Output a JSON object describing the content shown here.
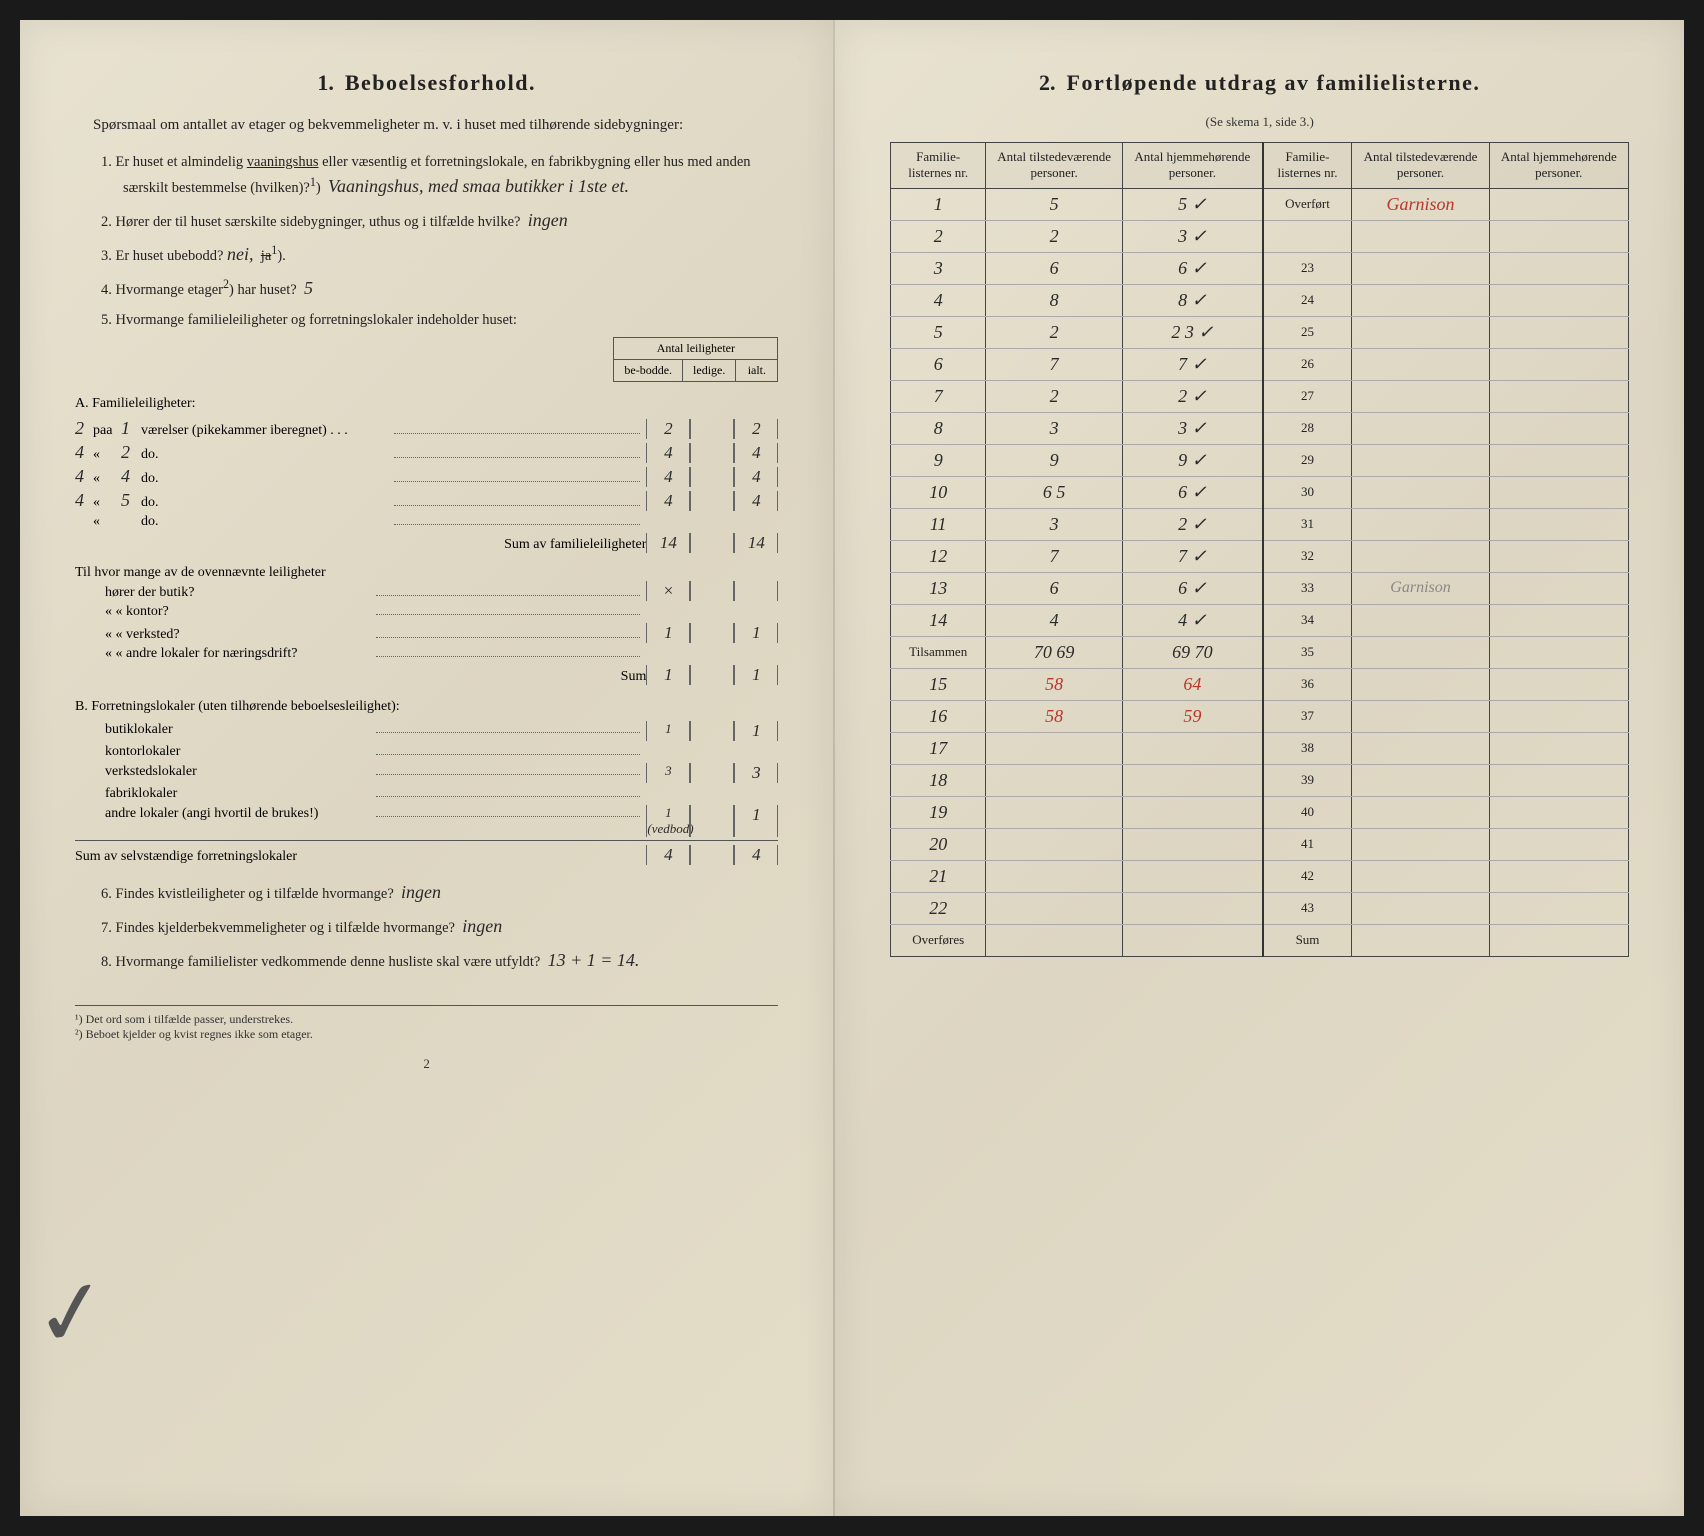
{
  "document": {
    "background_color": "#e4ddc8",
    "ink_color": "#222222",
    "red_ink": "#b8372a",
    "pencil_color": "#888888"
  },
  "left": {
    "section_no": "1.",
    "section_title": "Beboelsesforhold.",
    "intro": "Spørsmaal om antallet av etager og bekvemmeligheter m. v. i huset med tilhørende sidebygninger:",
    "q1": {
      "num": "1.",
      "text_a": "Er huset et almindelig ",
      "underlined": "vaaningshus",
      "text_b": " eller væsentlig et forretningslokale, en fabrikbygning eller hus med anden særskilt bestemmelse (hvilken)?",
      "sup": "1",
      "answer": "Vaaningshus, med smaa butikker i 1ste et."
    },
    "q2": {
      "num": "2.",
      "text": "Hører der til huset særskilte sidebygninger, uthus og i tilfælde hvilke?",
      "answer": "ingen"
    },
    "q3": {
      "num": "3.",
      "text_a": "Er huset ubebodd? ",
      "answer": "nei,",
      "struck": "ja",
      "sup": "1",
      "text_b": ")."
    },
    "q4": {
      "num": "4.",
      "text_a": "Hvormange etager",
      "sup": "2",
      "text_b": ") har huset?",
      "answer": "5"
    },
    "q5": {
      "num": "5.",
      "text": "Hvormange familieleiligheter og forretningslokaler indeholder huset:"
    },
    "mini_header": {
      "top": "Antal leiligheter",
      "c1": "be-bodde.",
      "c2": "ledige.",
      "c3": "ialt."
    },
    "sectionA_title": "A. Familieleiligheter:",
    "a_rows": [
      {
        "margin": "2",
        "label_a": "paa",
        "n": "1",
        "label_b": "værelser (pikekammer iberegnet) . . .",
        "c1": "2",
        "c2": "",
        "c3": "2"
      },
      {
        "margin": "4",
        "label_a": "«",
        "n": "2",
        "label_b": "do.",
        "c1": "4",
        "c2": "",
        "c3": "4"
      },
      {
        "margin": "4",
        "label_a": "«",
        "n": "4",
        "label_b": "do.",
        "c1": "4",
        "c2": "",
        "c3": "4"
      },
      {
        "margin": "4",
        "label_a": "«",
        "n": "5",
        "label_b": "do.",
        "c1": "4",
        "c2": "",
        "c3": "4"
      },
      {
        "margin": "",
        "label_a": "«",
        "n": "",
        "label_b": "do.",
        "c1": "",
        "c2": "",
        "c3": ""
      }
    ],
    "a_sum_label": "Sum av familieleiligheter",
    "a_sum": {
      "c1": "14",
      "c2": "",
      "c3": "14"
    },
    "sub_q_intro": "Til hvor mange av de ovennævnte leiligheter",
    "sub_rows": [
      {
        "label": "hører der butik?",
        "c1": "×",
        "c2": "",
        "c3": ""
      },
      {
        "label": "«    «  kontor?",
        "c1": "",
        "c2": "",
        "c3": ""
      },
      {
        "label": "«    «  verksted?",
        "c1": "1",
        "c2": "",
        "c3": "1"
      },
      {
        "label": "«    «  andre lokaler for næringsdrift?",
        "c1": "",
        "c2": "",
        "c3": ""
      }
    ],
    "sub_sum_label": "Sum",
    "sub_sum": {
      "c1": "1",
      "c2": "",
      "c3": "1"
    },
    "sectionB_title": "B. Forretningslokaler (uten tilhørende beboelsesleilighet):",
    "b_rows": [
      {
        "label": "butiklokaler",
        "c1": "1",
        "c2": "",
        "c3": "1"
      },
      {
        "label": "kontorlokaler",
        "c1": "",
        "c2": "",
        "c3": ""
      },
      {
        "label": "verkstedslokaler",
        "c1": "3",
        "c2": "",
        "c3": "3"
      },
      {
        "label": "fabriklokaler",
        "c1": "",
        "c2": "",
        "c3": ""
      },
      {
        "label": "andre lokaler (angi hvortil de brukes!)",
        "c1": "1 (vedbod)",
        "c2": "",
        "c3": "1"
      }
    ],
    "b_sum_label": "Sum av selvstændige forretningslokaler",
    "b_sum": {
      "c1": "4",
      "c2": "",
      "c3": "4"
    },
    "q6": {
      "num": "6.",
      "text": "Findes kvistleiligheter og i tilfælde hvormange?",
      "answer": "ingen"
    },
    "q7": {
      "num": "7.",
      "text": "Findes kjelderbekvemmeligheter og i tilfælde hvormange?",
      "answer": "ingen"
    },
    "q8": {
      "num": "8.",
      "text": "Hvormange familielister vedkommende denne husliste skal være utfyldt?",
      "answer": "13 + 1 = 14."
    },
    "footnote1": "¹) Det ord som i tilfælde passer, understrekes.",
    "footnote2": "²) Beboet kjelder og kvist regnes ikke som etager.",
    "page_num": "2"
  },
  "right": {
    "section_no": "2.",
    "section_title": "Fortløpende utdrag av familielisterne.",
    "subtitle": "(Se skema 1, side 3.)",
    "headers": {
      "c1": "Familie-listernes nr.",
      "c2": "Antal tilstedeværende personer.",
      "c3": "Antal hjemmehørende personer.",
      "c4": "Familie-listernes nr.",
      "c5": "Antal tilstedeværende personer.",
      "c6": "Antal hjemmehørende personer."
    },
    "rows": [
      {
        "n1": "1",
        "a": "5",
        "b": "5 ✓",
        "n2": "Overført",
        "c": "Garnison",
        "d": ""
      },
      {
        "n1": "2",
        "a": "2",
        "b": "3 ✓",
        "n2": "",
        "c": "",
        "d": ""
      },
      {
        "n1": "3",
        "a": "6",
        "b": "6 ✓",
        "n2": "23",
        "c": "",
        "d": ""
      },
      {
        "n1": "4",
        "a": "8",
        "b": "8 ✓",
        "n2": "24",
        "c": "",
        "d": ""
      },
      {
        "n1": "5",
        "a": "2",
        "b": "2 3 ✓",
        "n2": "25",
        "c": "",
        "d": ""
      },
      {
        "n1": "6",
        "a": "7",
        "b": "7 ✓",
        "n2": "26",
        "c": "",
        "d": ""
      },
      {
        "n1": "7",
        "a": "2",
        "b": "2 ✓",
        "n2": "27",
        "c": "",
        "d": ""
      },
      {
        "n1": "8",
        "a": "3",
        "b": "3 ✓",
        "n2": "28",
        "c": "",
        "d": ""
      },
      {
        "n1": "9",
        "a": "9",
        "b": "9 ✓",
        "n2": "29",
        "c": "",
        "d": ""
      },
      {
        "n1": "10",
        "a": "6 5",
        "b": "6 ✓",
        "n2": "30",
        "c": "",
        "d": ""
      },
      {
        "n1": "11",
        "a": "3",
        "b": "2 ✓",
        "n2": "31",
        "c": "",
        "d": ""
      },
      {
        "n1": "12",
        "a": "7",
        "b": "7 ✓",
        "n2": "32",
        "c": "",
        "d": ""
      },
      {
        "n1": "13",
        "a": "6",
        "b": "6 ✓",
        "n2": "33",
        "c": "Garnison",
        "d": ""
      },
      {
        "n1": "14",
        "a": "4",
        "b": "4 ✓",
        "n2": "34",
        "c": "",
        "d": ""
      },
      {
        "n1": "Tilsammen",
        "a": "70 69",
        "b": "69 70",
        "n2": "35",
        "c": "",
        "d": ""
      },
      {
        "n1": "15",
        "a": "58",
        "b": "64",
        "n2": "36",
        "c": "",
        "d": ""
      },
      {
        "n1": "16",
        "a": "58",
        "b": "59",
        "n2": "37",
        "c": "",
        "d": ""
      },
      {
        "n1": "17",
        "a": "",
        "b": "",
        "n2": "38",
        "c": "",
        "d": ""
      },
      {
        "n1": "18",
        "a": "",
        "b": "",
        "n2": "39",
        "c": "",
        "d": ""
      },
      {
        "n1": "19",
        "a": "",
        "b": "",
        "n2": "40",
        "c": "",
        "d": ""
      },
      {
        "n1": "20",
        "a": "",
        "b": "",
        "n2": "41",
        "c": "",
        "d": ""
      },
      {
        "n1": "21",
        "a": "",
        "b": "",
        "n2": "42",
        "c": "",
        "d": ""
      },
      {
        "n1": "22",
        "a": "",
        "b": "",
        "n2": "43",
        "c": "",
        "d": ""
      },
      {
        "n1": "Overføres",
        "a": "",
        "b": "",
        "n2": "Sum",
        "c": "",
        "d": ""
      }
    ],
    "red_rows": [
      15,
      16
    ],
    "pencil_cells": [
      "Garnison"
    ]
  }
}
